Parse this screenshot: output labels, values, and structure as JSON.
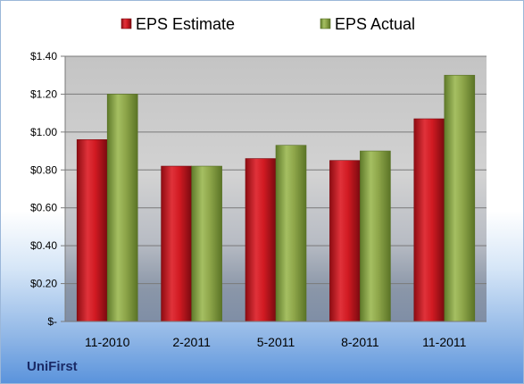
{
  "company": "UniFirst",
  "chart_data": {
    "type": "bar",
    "title": "",
    "xlabel": "",
    "ylabel": "",
    "categories": [
      "11-2010",
      "2-2011",
      "5-2011",
      "8-2011",
      "11-2011"
    ],
    "series": [
      {
        "name": "EPS Estimate",
        "values": [
          0.96,
          0.82,
          0.86,
          0.85,
          1.07
        ],
        "color": "#c8141e"
      },
      {
        "name": "EPS Actual",
        "values": [
          1.2,
          0.82,
          0.93,
          0.9,
          1.3
        ],
        "color": "#8faa4a"
      }
    ],
    "ylim": [
      0,
      1.4
    ],
    "ytick_values": [
      0,
      0.2,
      0.4,
      0.6,
      0.8,
      1.0,
      1.2,
      1.4
    ],
    "ytick_labels": [
      "$-",
      "$0.20",
      "$0.40",
      "$0.60",
      "$0.80",
      "$1.00",
      "$1.20",
      "$1.40"
    ],
    "grid": true,
    "legend_position": "top"
  }
}
